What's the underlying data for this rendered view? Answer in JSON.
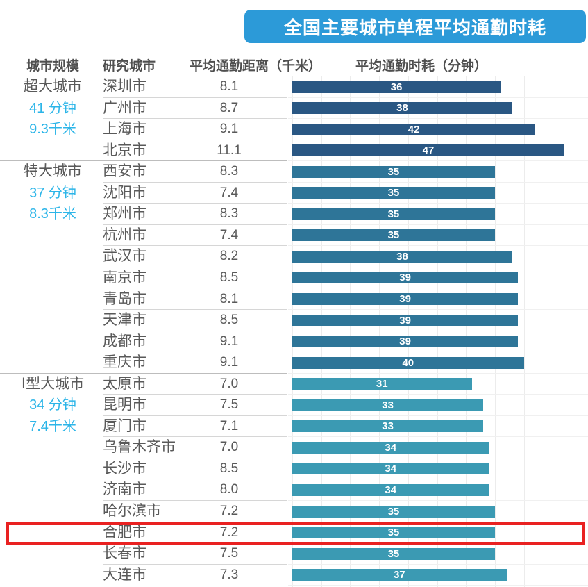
{
  "title": "全国主要城市单程平均通勤时耗",
  "header": {
    "col_scale": "城市规模",
    "col_city": "研究城市",
    "col_distance": "平均通勤距离（千米）",
    "col_time": "平均通勤时耗（分钟）"
  },
  "colors": {
    "title_bg": "#2c9ad8",
    "accent_cyan": "#2cb5e8",
    "text_dark": "#595959",
    "bar_label": "#ffffff",
    "highlight_red": "#e92121"
  },
  "highlight": {
    "city": "合肥市"
  },
  "chart_data": {
    "type": "bar",
    "orientation": "horizontal",
    "title": "全国主要城市单程平均通勤时耗",
    "value_label": "平均通勤时耗（分钟）",
    "category_label": "研究城市",
    "xlim": [
      0,
      50
    ],
    "grid": true,
    "grid_step": 5,
    "groups": [
      {
        "scale": "超大城市",
        "avg_time_label": "41 分钟",
        "avg_distance_label": "9.3千米",
        "bar_color": "#2a5783",
        "cities": [
          {
            "city": "深圳市",
            "distance_km": "8.1",
            "time_min": 36
          },
          {
            "city": "广州市",
            "distance_km": "8.7",
            "time_min": 38
          },
          {
            "city": "上海市",
            "distance_km": "9.1",
            "time_min": 42
          },
          {
            "city": "北京市",
            "distance_km": "11.1",
            "time_min": 47
          }
        ]
      },
      {
        "scale": "特大城市",
        "avg_time_label": "37 分钟",
        "avg_distance_label": "8.3千米",
        "bar_color": "#2e7598",
        "cities": [
          {
            "city": "西安市",
            "distance_km": "8.3",
            "time_min": 35
          },
          {
            "city": "沈阳市",
            "distance_km": "7.4",
            "time_min": 35
          },
          {
            "city": "郑州市",
            "distance_km": "8.3",
            "time_min": 35
          },
          {
            "city": "杭州市",
            "distance_km": "7.4",
            "time_min": 35
          },
          {
            "city": "武汉市",
            "distance_km": "8.2",
            "time_min": 38
          },
          {
            "city": "南京市",
            "distance_km": "8.5",
            "time_min": 39
          },
          {
            "city": "青岛市",
            "distance_km": "8.1",
            "time_min": 39
          },
          {
            "city": "天津市",
            "distance_km": "8.5",
            "time_min": 39
          },
          {
            "city": "成都市",
            "distance_km": "9.1",
            "time_min": 39
          },
          {
            "city": "重庆市",
            "distance_km": "9.1",
            "time_min": 40
          }
        ]
      },
      {
        "scale": "Ⅰ型大城市",
        "avg_time_label": "34 分钟",
        "avg_distance_label": "7.4千米",
        "bar_color": "#3b9ab3",
        "cities": [
          {
            "city": "太原市",
            "distance_km": "7.0",
            "time_min": 31
          },
          {
            "city": "昆明市",
            "distance_km": "7.5",
            "time_min": 33
          },
          {
            "city": "厦门市",
            "distance_km": "7.1",
            "time_min": 33
          },
          {
            "city": "乌鲁木齐市",
            "distance_km": "7.0",
            "time_min": 34
          },
          {
            "city": "长沙市",
            "distance_km": "8.5",
            "time_min": 34
          },
          {
            "city": "济南市",
            "distance_km": "8.0",
            "time_min": 34
          },
          {
            "city": "哈尔滨市",
            "distance_km": "7.2",
            "time_min": 35
          },
          {
            "city": "合肥市",
            "distance_km": "7.2",
            "time_min": 35
          },
          {
            "city": "长春市",
            "distance_km": "7.5",
            "time_min": 35
          },
          {
            "city": "大连市",
            "distance_km": "7.3",
            "time_min": 37
          }
        ]
      }
    ]
  }
}
